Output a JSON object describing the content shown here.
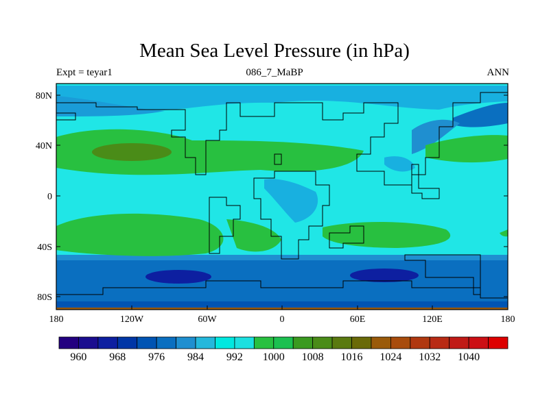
{
  "title": "Mean Sea Level Pressure (in hPa)",
  "subtitle": {
    "left": "Expt = teyar1",
    "center": "086_7_MaBP",
    "right": "ANN"
  },
  "axes": {
    "lat_ticks": [
      "80N",
      "40N",
      "0",
      "40S",
      "80S"
    ],
    "lon_ticks": [
      "180",
      "120W",
      "60W",
      "0",
      "60E",
      "120E",
      "180"
    ]
  },
  "colorbar": {
    "colors": [
      "#230080",
      "#1a0d8f",
      "#0d1fa0",
      "#0036a6",
      "#0054b3",
      "#0a6fc0",
      "#1f8fd0",
      "#24b8dc",
      "#00e8e0",
      "#1ce0e0",
      "#28c040",
      "#1cc050",
      "#3a9a20",
      "#4a8c18",
      "#5a7a10",
      "#6a6a08",
      "#9a5a0a",
      "#a84c0c",
      "#b03810",
      "#b82a14",
      "#c01a16",
      "#cc0f14",
      "#dd0000"
    ],
    "labels": [
      "960",
      "968",
      "976",
      "984",
      "992",
      "1000",
      "1008",
      "1016",
      "1024",
      "1032",
      "1040"
    ]
  }
}
